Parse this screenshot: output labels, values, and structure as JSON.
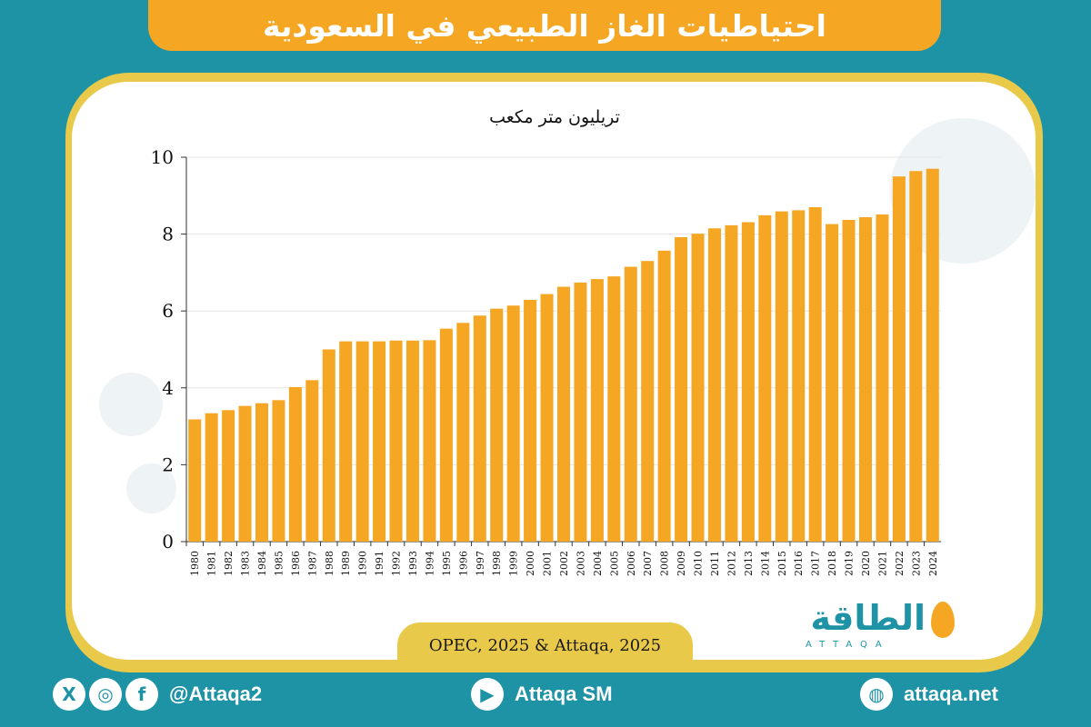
{
  "title": "احتياطيات الغاز الطبيعي في السعودية",
  "unit_label": "تريليون متر مكعب",
  "source": "OPEC, 2025 & Attaqa, 2025",
  "logo": {
    "text": "الطاقة",
    "sub": "ATTAQA"
  },
  "footer": {
    "social_handle": "@Attaqa2",
    "youtube": "Attaqa SM",
    "website": "attaqa.net",
    "icons": [
      "x-icon",
      "instagram-icon",
      "facebook-icon",
      "youtube-icon",
      "globe-icon"
    ]
  },
  "colors": {
    "background": "#1f93a6",
    "accent": "#f5a623",
    "frame": "#e8c94a",
    "bar": "#f5a623"
  },
  "chart_data": {
    "type": "bar",
    "categories": [
      "1980",
      "1981",
      "1982",
      "1983",
      "1984",
      "1985",
      "1986",
      "1987",
      "1988",
      "1989",
      "1990",
      "1991",
      "1992",
      "1993",
      "1994",
      "1995",
      "1996",
      "1997",
      "1998",
      "1999",
      "2000",
      "2001",
      "2002",
      "2003",
      "2004",
      "2005",
      "2006",
      "2007",
      "2008",
      "2009",
      "2010",
      "2011",
      "2012",
      "2013",
      "2014",
      "2015",
      "2016",
      "2017",
      "2018",
      "2019",
      "2020",
      "2021",
      "2022",
      "2023",
      "2024"
    ],
    "values": [
      3.18,
      3.34,
      3.42,
      3.53,
      3.6,
      3.68,
      4.02,
      4.2,
      5.0,
      5.21,
      5.21,
      5.21,
      5.23,
      5.23,
      5.24,
      5.54,
      5.69,
      5.88,
      6.06,
      6.14,
      6.29,
      6.44,
      6.63,
      6.74,
      6.83,
      6.9,
      7.15,
      7.3,
      7.57,
      7.92,
      8.01,
      8.15,
      8.23,
      8.31,
      8.49,
      8.59,
      8.62,
      8.7,
      8.26,
      8.37,
      8.44,
      8.51,
      9.5,
      9.64,
      9.7
    ],
    "ylim": [
      0,
      10
    ],
    "yticks": [
      0,
      2,
      4,
      6,
      8,
      10
    ],
    "ylabel": "تريليون متر مكعب",
    "grid": true
  }
}
